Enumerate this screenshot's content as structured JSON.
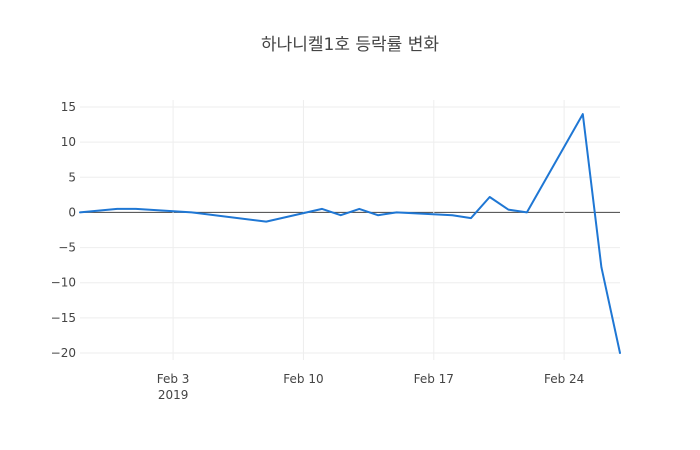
{
  "chart_data": {
    "type": "line",
    "title": "하나니켈1호 등락률 변화",
    "xlabel": "",
    "ylabel": "",
    "x_range": [
      "2019-01-29",
      "2019-02-27"
    ],
    "ylim": [
      -21,
      16
    ],
    "y_ticks": [
      15,
      10,
      5,
      0,
      -5,
      -10,
      -15,
      -20
    ],
    "y_tick_labels": [
      "15",
      "10",
      "5",
      "0",
      "−5",
      "−10",
      "−15",
      "−20"
    ],
    "x_ticks": [
      {
        "date": "2019-02-03",
        "label": "Feb 3",
        "sublabel": "2019"
      },
      {
        "date": "2019-02-10",
        "label": "Feb 10",
        "sublabel": ""
      },
      {
        "date": "2019-02-17",
        "label": "Feb 17",
        "sublabel": ""
      },
      {
        "date": "2019-02-24",
        "label": "Feb 24",
        "sublabel": ""
      }
    ],
    "grid": true,
    "line_color": "#1f77d4",
    "series": [
      {
        "x": [
          "2019-01-29",
          "2019-01-31",
          "2019-02-01",
          "2019-02-04",
          "2019-02-08",
          "2019-02-11",
          "2019-02-12",
          "2019-02-13",
          "2019-02-14",
          "2019-02-15",
          "2019-02-18",
          "2019-02-19",
          "2019-02-20",
          "2019-02-21",
          "2019-02-22",
          "2019-02-25",
          "2019-02-26",
          "2019-02-27"
        ],
        "y": [
          0,
          0.5,
          0.5,
          0,
          -1.3,
          0.5,
          -0.4,
          0.5,
          -0.4,
          0,
          -0.4,
          -0.8,
          2.2,
          0.4,
          0,
          14,
          -7.8,
          -20
        ]
      }
    ]
  }
}
